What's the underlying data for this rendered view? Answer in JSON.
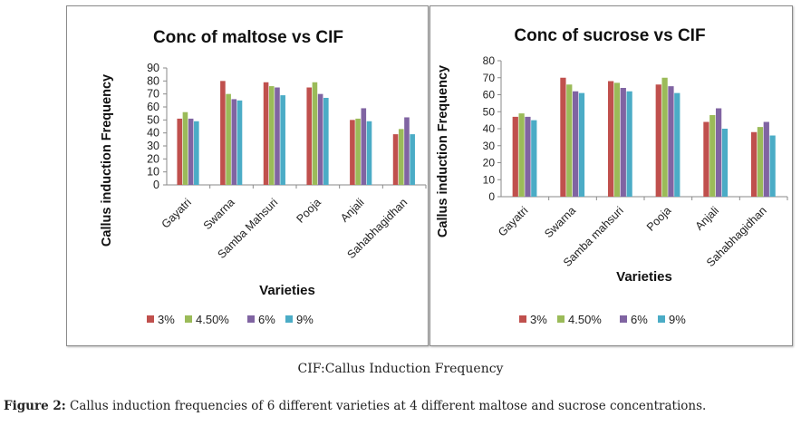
{
  "legend_labels": [
    "3%",
    "4.50%",
    "6%",
    "9%"
  ],
  "colors": [
    "#c0504d",
    "#9bbb59",
    "#8064a2",
    "#4bacc6"
  ],
  "cif_note": "CIF:Callus Induction Frequency",
  "caption": {
    "label": "Figure 2:",
    "text": "Callus induction frequencies of 6 different varieties at 4 different maltose and sucrose concentrations."
  },
  "chart_data": [
    {
      "type": "bar",
      "title": "Conc of maltose vs CIF",
      "xlabel": "Varieties",
      "ylabel": "Callus induction Frequency",
      "ylim": [
        0,
        90
      ],
      "yticks": [
        0,
        10,
        20,
        30,
        40,
        50,
        60,
        70,
        80,
        90
      ],
      "grid": false,
      "legend_position": "bottom",
      "categories": [
        "Gayatri",
        "Swarna",
        "Samba Mahsuri",
        "Pooja",
        "Anjali",
        "Sahabhagidhan"
      ],
      "series": [
        {
          "name": "3%",
          "values": [
            51,
            80,
            79,
            75,
            50,
            39
          ]
        },
        {
          "name": "4.50%",
          "values": [
            56,
            70,
            76,
            79,
            51,
            43
          ]
        },
        {
          "name": "6%",
          "values": [
            51,
            66,
            75,
            70,
            59,
            52
          ]
        },
        {
          "name": "9%",
          "values": [
            49,
            65,
            69,
            67,
            49,
            39
          ]
        }
      ]
    },
    {
      "type": "bar",
      "title": "Conc of sucrose vs CIF",
      "xlabel": "Varieties",
      "ylabel": "Callus induction Frequency",
      "ylim": [
        0,
        80
      ],
      "yticks": [
        0,
        10,
        20,
        30,
        40,
        50,
        60,
        70,
        80
      ],
      "grid": false,
      "legend_position": "bottom",
      "categories": [
        "Gayatri",
        "Swarna",
        "Samba mahsuri",
        "Pooja",
        "Anjali",
        "Sahabhagidhan"
      ],
      "series": [
        {
          "name": "3%",
          "values": [
            47,
            70,
            68,
            66,
            44,
            38
          ]
        },
        {
          "name": "4.50%",
          "values": [
            49,
            66,
            67,
            70,
            48,
            41
          ]
        },
        {
          "name": "6%",
          "values": [
            47,
            62,
            64,
            65,
            52,
            44
          ]
        },
        {
          "name": "9%",
          "values": [
            45,
            61,
            62,
            61,
            40,
            36
          ]
        }
      ]
    }
  ]
}
